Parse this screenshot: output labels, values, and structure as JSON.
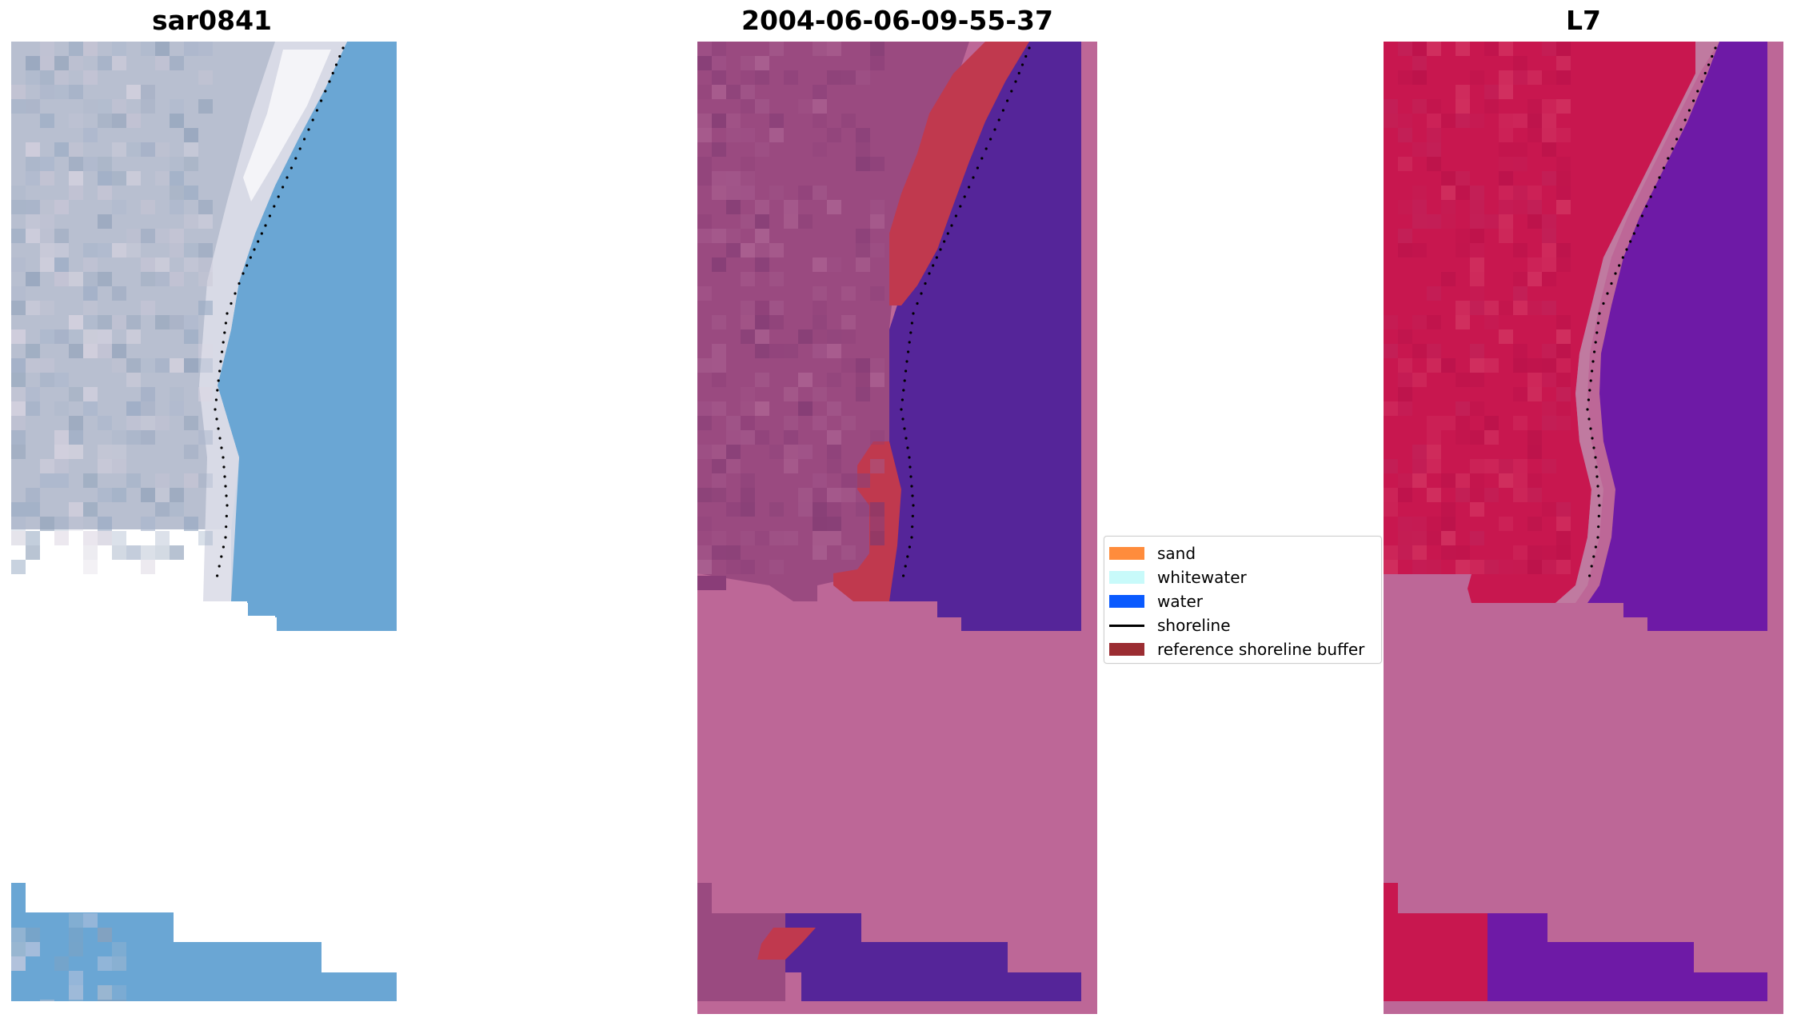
{
  "panels": [
    {
      "title": "sar0841"
    },
    {
      "title": "2004-06-06-09-55-37"
    },
    {
      "title": "L7"
    }
  ],
  "legend": {
    "items": [
      {
        "label": "sand",
        "color": "#ff8c3c",
        "kind": "patch"
      },
      {
        "label": "whitewater",
        "color": "#c8fafa",
        "kind": "patch"
      },
      {
        "label": "water",
        "color": "#0a5aff",
        "kind": "patch"
      },
      {
        "label": "shoreline",
        "color": "#000000",
        "kind": "line"
      },
      {
        "label": "reference shoreline buffer",
        "color": "#9b2d32",
        "kind": "patch"
      }
    ]
  },
  "colors": {
    "rgb_land": "#b8bfd0",
    "rgb_water": "#6aa6d4",
    "class_land": "#9a4a80",
    "class_water": "#552599",
    "class_nodata": "#bd6797",
    "class_buffer": "#c0394e",
    "ndwi_land": "#c8174f",
    "ndwi_water": "#6e1aa6",
    "ndwi_nodata": "#bd6797"
  }
}
